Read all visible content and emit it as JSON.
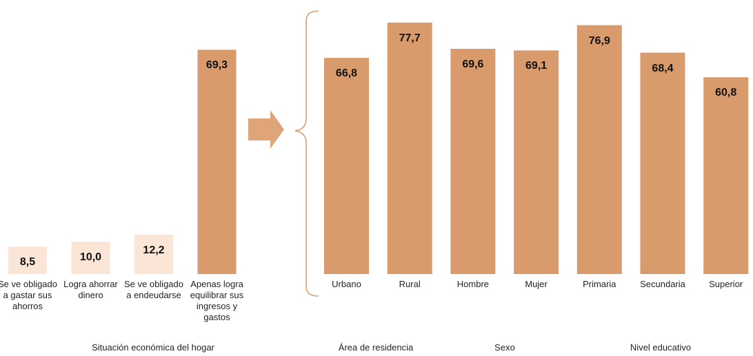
{
  "chart_data": [
    {
      "type": "bar",
      "categories": [
        "Se ve obligado a gastar sus ahorros",
        "Logra ahorrar dinero",
        "Se ve obligado a endeudarse",
        "Apenas logra equilibrar sus ingresos y gastos"
      ],
      "values": [
        8.5,
        10.0,
        12.2,
        69.3
      ],
      "value_labels": [
        "8,5",
        "10,0",
        "12,2",
        "69,3"
      ],
      "colors": [
        "#fbe5d6",
        "#fbe5d6",
        "#fbe5d6",
        "#d99a6c"
      ],
      "groups": [
        "Situación económica del  hogar"
      ],
      "ylim": [
        0,
        80
      ]
    },
    {
      "type": "bar",
      "categories": [
        "Urbano",
        "Rural",
        "Hombre",
        "Mujer",
        "Primaria",
        "Secundaria",
        "Superior"
      ],
      "values": [
        66.8,
        77.7,
        69.6,
        69.1,
        76.9,
        68.4,
        60.8
      ],
      "value_labels": [
        "66,8",
        "77,7",
        "69,6",
        "69,1",
        "76,9",
        "68,4",
        "60,8"
      ],
      "colors": [
        "#d99a6c",
        "#d99a6c",
        "#d99a6c",
        "#d99a6c",
        "#d99a6c",
        "#d99a6c",
        "#d99a6c"
      ],
      "groups": [
        "Área de residencia",
        "Sexo",
        "Nivel educativo"
      ],
      "ylim": [
        0,
        80
      ]
    }
  ]
}
